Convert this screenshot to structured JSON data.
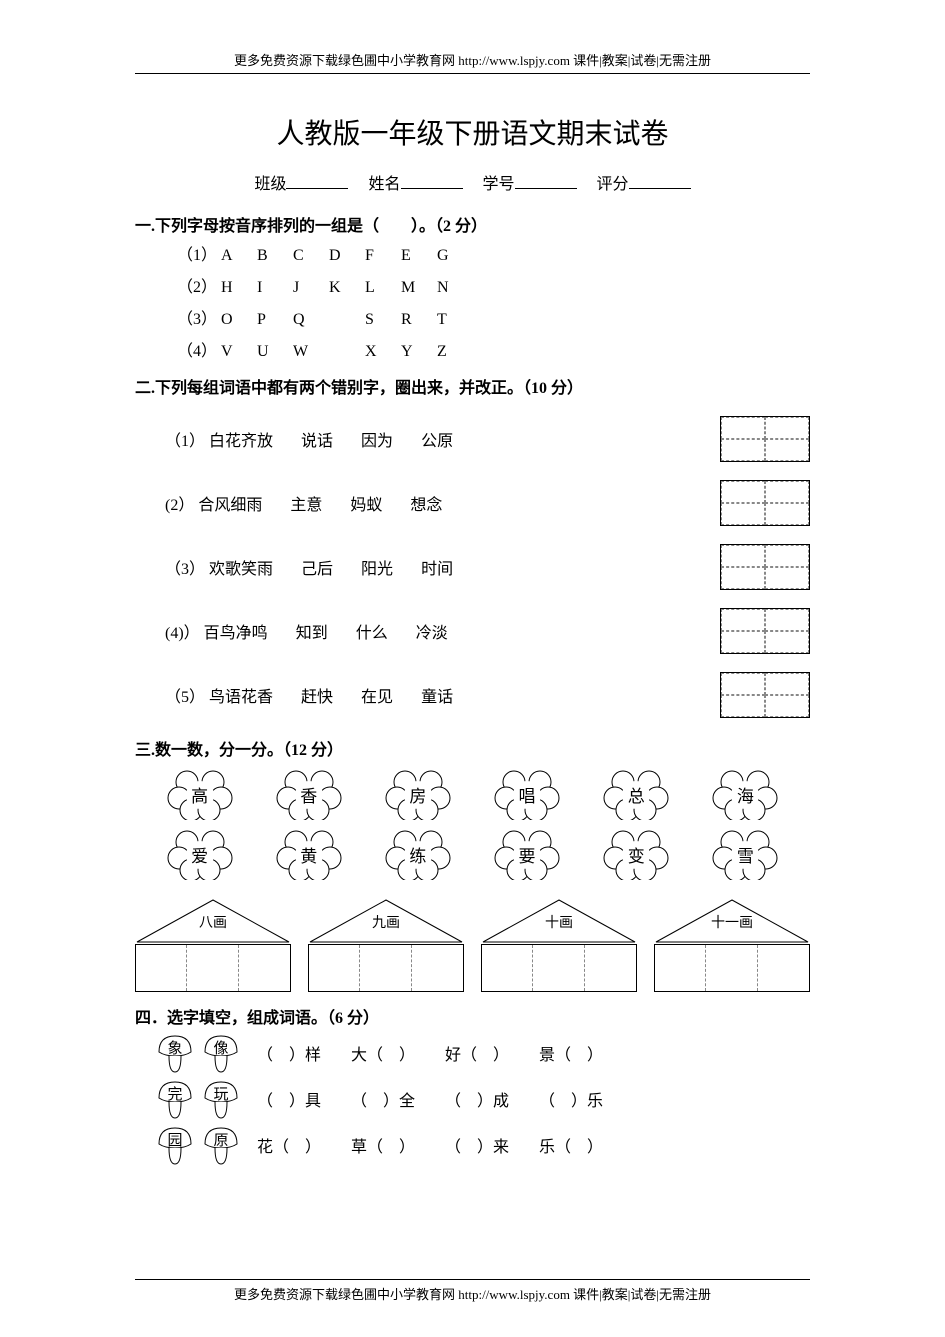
{
  "header_footer": "更多免费资源下载绿色圃中小学教育网 http://www.lspjy.com   课件|教案|试卷|无需注册",
  "title": "人教版一年级下册语文期末试卷",
  "info": {
    "class": "班级",
    "name": "姓名",
    "id": "学号",
    "score": "评分"
  },
  "q1": {
    "head": "一.下列字母按音序排列的一组是（　　）。（2 分）",
    "rows": [
      {
        "n": "（1）",
        "letters": [
          "A",
          "B",
          "C",
          "D",
          "F",
          "E",
          "G"
        ]
      },
      {
        "n": "（2）",
        "letters": [
          "H",
          "I",
          "J",
          "K",
          "L",
          "M",
          "N"
        ]
      },
      {
        "n": "（3）",
        "letters": [
          "O",
          "P",
          "Q",
          "",
          "S",
          "R",
          "T"
        ]
      },
      {
        "n": "（4）",
        "letters": [
          "V",
          "U",
          "W",
          "",
          "X",
          "Y",
          "Z"
        ]
      }
    ]
  },
  "q2": {
    "head": "二.下列每组词语中都有两个错别字，圈出来，并改正。（10 分）",
    "rows": [
      {
        "n": "（1）",
        "w": [
          "白花齐放",
          "说话",
          "因为",
          "公原"
        ]
      },
      {
        "n": "(2）",
        "w": [
          "合风细雨",
          "主意",
          "妈蚁",
          "想念"
        ]
      },
      {
        "n": "（3）",
        "w": [
          "欢歌笑雨",
          "己后",
          "阳光",
          "时间"
        ]
      },
      {
        "n": "(4)）",
        "w": [
          "百鸟净鸣",
          "知到",
          "什么",
          "冷淡"
        ]
      },
      {
        "n": "（5）",
        "w": [
          "鸟语花香",
          "赶快",
          "在见",
          "童话"
        ]
      }
    ]
  },
  "q3": {
    "head": "三.数一数，分一分。（12 分）",
    "cloud_row1": [
      "高",
      "香",
      "房",
      "唱",
      "总",
      "海"
    ],
    "cloud_row2": [
      "爱",
      "黄",
      "练",
      "要",
      "变",
      "雪"
    ],
    "houses": [
      "八画",
      "九画",
      "十画",
      "十一画"
    ]
  },
  "q4": {
    "head": "四．选字填空，组成词语。（6 分）",
    "rows": [
      {
        "m": [
          "象",
          "像"
        ],
        "w": [
          "（　）样",
          "大（　）",
          "好（　）",
          "景（　）"
        ]
      },
      {
        "m": [
          "完",
          "玩"
        ],
        "w": [
          "（　）具",
          "（　）全",
          "（　）成",
          "（　）乐"
        ]
      },
      {
        "m": [
          "园",
          "原"
        ],
        "w": [
          "花（　）",
          "草（　）",
          "（　）来",
          "乐（　）"
        ]
      }
    ]
  },
  "colors": {
    "text": "#000000",
    "bg": "#ffffff",
    "dash": "#888888"
  }
}
